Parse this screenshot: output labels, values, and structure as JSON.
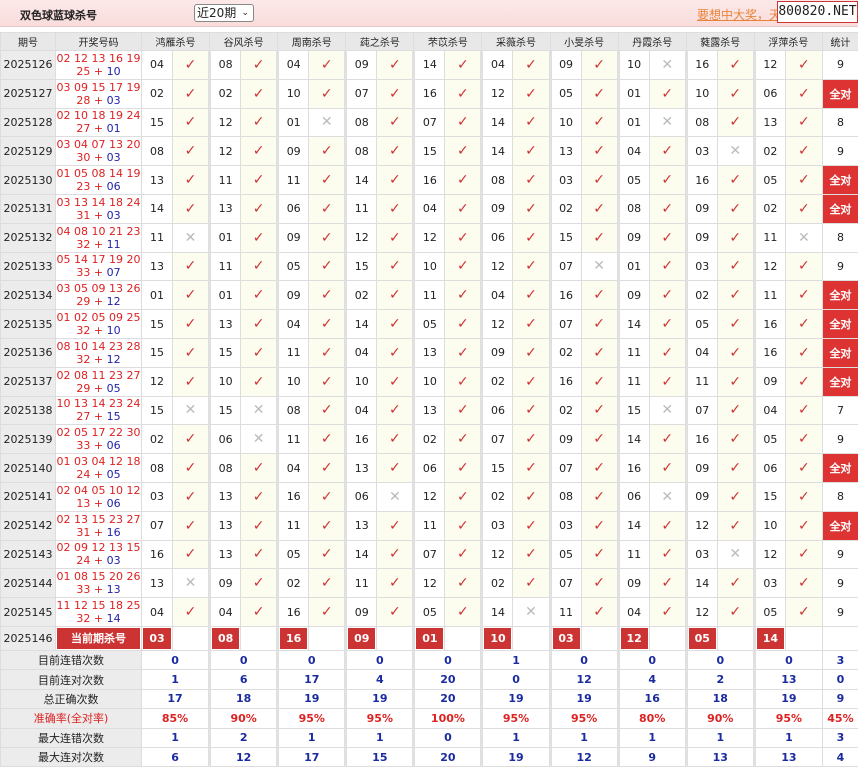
{
  "header": {
    "title": "双色球蓝球杀号",
    "period_select": "近20期",
    "promo": "要想中大奖，天",
    "site": "800820.NET"
  },
  "columns": {
    "period": "期号",
    "numbers": "开奖号码",
    "experts": [
      "鸿雁杀号",
      "谷风杀号",
      "周南杀号",
      "莼之杀号",
      "芣苡杀号",
      "采薇杀号",
      "小旻杀号",
      "丹霞杀号",
      "蕤露杀号",
      "浮萍杀号"
    ],
    "total": "统计"
  },
  "rows": [
    {
      "period": "2025126",
      "reds": "02 12 13 16 19",
      "red6": "25",
      "blue": "10",
      "kills": [
        "04",
        "08",
        "04",
        "09",
        "14",
        "04",
        "09",
        "10",
        "16",
        "12"
      ],
      "ok": [
        1,
        1,
        1,
        1,
        1,
        1,
        1,
        0,
        1,
        1
      ],
      "total": "9"
    },
    {
      "period": "2025127",
      "reds": "03 09 15 17 19",
      "red6": "28",
      "blue": "03",
      "kills": [
        "02",
        "02",
        "10",
        "07",
        "16",
        "12",
        "05",
        "01",
        "10",
        "06"
      ],
      "ok": [
        1,
        1,
        1,
        1,
        1,
        1,
        1,
        1,
        1,
        1
      ],
      "total": "全对"
    },
    {
      "period": "2025128",
      "reds": "02 10 18 19 24",
      "red6": "27",
      "blue": "01",
      "kills": [
        "15",
        "12",
        "01",
        "08",
        "07",
        "14",
        "10",
        "01",
        "08",
        "13"
      ],
      "ok": [
        1,
        1,
        0,
        1,
        1,
        1,
        1,
        0,
        1,
        1
      ],
      "total": "8"
    },
    {
      "period": "2025129",
      "reds": "03 04 07 13 20",
      "red6": "30",
      "blue": "03",
      "kills": [
        "08",
        "12",
        "09",
        "08",
        "15",
        "14",
        "13",
        "04",
        "03",
        "02"
      ],
      "ok": [
        1,
        1,
        1,
        1,
        1,
        1,
        1,
        1,
        0,
        1
      ],
      "total": "9"
    },
    {
      "period": "2025130",
      "reds": "01 05 08 14 19",
      "red6": "23",
      "blue": "06",
      "kills": [
        "13",
        "11",
        "11",
        "14",
        "16",
        "08",
        "03",
        "05",
        "16",
        "05"
      ],
      "ok": [
        1,
        1,
        1,
        1,
        1,
        1,
        1,
        1,
        1,
        1
      ],
      "total": "全对"
    },
    {
      "period": "2025131",
      "reds": "03 13 14 18 24",
      "red6": "31",
      "blue": "03",
      "kills": [
        "14",
        "13",
        "06",
        "11",
        "04",
        "09",
        "02",
        "08",
        "09",
        "02"
      ],
      "ok": [
        1,
        1,
        1,
        1,
        1,
        1,
        1,
        1,
        1,
        1
      ],
      "total": "全对"
    },
    {
      "period": "2025132",
      "reds": "04 08 10 21 23",
      "red6": "32",
      "blue": "11",
      "kills": [
        "11",
        "01",
        "09",
        "12",
        "12",
        "06",
        "15",
        "09",
        "09",
        "11"
      ],
      "ok": [
        0,
        1,
        1,
        1,
        1,
        1,
        1,
        1,
        1,
        0
      ],
      "total": "8"
    },
    {
      "period": "2025133",
      "reds": "05 14 17 19 20",
      "red6": "33",
      "blue": "07",
      "kills": [
        "13",
        "11",
        "05",
        "15",
        "10",
        "12",
        "07",
        "01",
        "03",
        "12"
      ],
      "ok": [
        1,
        1,
        1,
        1,
        1,
        1,
        0,
        1,
        1,
        1
      ],
      "total": "9"
    },
    {
      "period": "2025134",
      "reds": "03 05 09 13 26",
      "red6": "29",
      "blue": "12",
      "kills": [
        "01",
        "01",
        "09",
        "02",
        "11",
        "04",
        "16",
        "09",
        "02",
        "11"
      ],
      "ok": [
        1,
        1,
        1,
        1,
        1,
        1,
        1,
        1,
        1,
        1
      ],
      "total": "全对"
    },
    {
      "period": "2025135",
      "reds": "01 02 05 09 25",
      "red6": "32",
      "blue": "10",
      "kills": [
        "15",
        "13",
        "04",
        "14",
        "05",
        "12",
        "07",
        "14",
        "05",
        "16"
      ],
      "ok": [
        1,
        1,
        1,
        1,
        1,
        1,
        1,
        1,
        1,
        1
      ],
      "total": "全对"
    },
    {
      "period": "2025136",
      "reds": "08 10 14 23 28",
      "red6": "32",
      "blue": "12",
      "kills": [
        "15",
        "15",
        "11",
        "04",
        "13",
        "09",
        "02",
        "11",
        "04",
        "16"
      ],
      "ok": [
        1,
        1,
        1,
        1,
        1,
        1,
        1,
        1,
        1,
        1
      ],
      "total": "全对"
    },
    {
      "period": "2025137",
      "reds": "02 08 11 23 27",
      "red6": "29",
      "blue": "05",
      "kills": [
        "12",
        "10",
        "10",
        "10",
        "10",
        "02",
        "16",
        "11",
        "11",
        "09"
      ],
      "ok": [
        1,
        1,
        1,
        1,
        1,
        1,
        1,
        1,
        1,
        1
      ],
      "total": "全对"
    },
    {
      "period": "2025138",
      "reds": "10 13 14 23 24",
      "red6": "27",
      "blue": "15",
      "kills": [
        "15",
        "15",
        "08",
        "04",
        "13",
        "06",
        "02",
        "15",
        "07",
        "04"
      ],
      "ok": [
        0,
        0,
        1,
        1,
        1,
        1,
        1,
        0,
        1,
        1
      ],
      "total": "7"
    },
    {
      "period": "2025139",
      "reds": "02 05 17 22 30",
      "red6": "33",
      "blue": "06",
      "kills": [
        "02",
        "06",
        "11",
        "16",
        "02",
        "07",
        "09",
        "14",
        "16",
        "05"
      ],
      "ok": [
        1,
        0,
        1,
        1,
        1,
        1,
        1,
        1,
        1,
        1
      ],
      "total": "9"
    },
    {
      "period": "2025140",
      "reds": "01 03 04 12 18",
      "red6": "24",
      "blue": "05",
      "kills": [
        "08",
        "08",
        "04",
        "13",
        "06",
        "15",
        "07",
        "16",
        "09",
        "06"
      ],
      "ok": [
        1,
        1,
        1,
        1,
        1,
        1,
        1,
        1,
        1,
        1
      ],
      "total": "全对"
    },
    {
      "period": "2025141",
      "reds": "02 04 05 10 12",
      "red6": "13",
      "blue": "06",
      "kills": [
        "03",
        "13",
        "16",
        "06",
        "12",
        "02",
        "08",
        "06",
        "09",
        "15"
      ],
      "ok": [
        1,
        1,
        1,
        0,
        1,
        1,
        1,
        0,
        1,
        1
      ],
      "total": "8"
    },
    {
      "period": "2025142",
      "reds": "02 13 15 23 27",
      "red6": "31",
      "blue": "16",
      "kills": [
        "07",
        "13",
        "11",
        "13",
        "11",
        "03",
        "03",
        "14",
        "12",
        "10"
      ],
      "ok": [
        1,
        1,
        1,
        1,
        1,
        1,
        1,
        1,
        1,
        1
      ],
      "total": "全对"
    },
    {
      "period": "2025143",
      "reds": "02 09 12 13 15",
      "red6": "24",
      "blue": "03",
      "kills": [
        "16",
        "13",
        "05",
        "14",
        "07",
        "12",
        "05",
        "11",
        "03",
        "12"
      ],
      "ok": [
        1,
        1,
        1,
        1,
        1,
        1,
        1,
        1,
        0,
        1
      ],
      "total": "9"
    },
    {
      "period": "2025144",
      "reds": "01 08 15 20 26",
      "red6": "33",
      "blue": "13",
      "kills": [
        "13",
        "09",
        "02",
        "11",
        "12",
        "02",
        "07",
        "09",
        "14",
        "03"
      ],
      "ok": [
        0,
        1,
        1,
        1,
        1,
        1,
        1,
        1,
        1,
        1
      ],
      "total": "9"
    },
    {
      "period": "2025145",
      "reds": "11 12 15 18 25",
      "red6": "32",
      "blue": "14",
      "kills": [
        "04",
        "04",
        "16",
        "09",
        "05",
        "14",
        "11",
        "04",
        "12",
        "05"
      ],
      "ok": [
        1,
        1,
        1,
        1,
        1,
        0,
        1,
        1,
        1,
        1
      ],
      "total": "9"
    }
  ],
  "current": {
    "period": "2025146",
    "label": "当前期杀号",
    "kills": [
      "03",
      "08",
      "16",
      "09",
      "01",
      "10",
      "03",
      "12",
      "05",
      "14"
    ]
  },
  "stats": [
    {
      "label": "目前连错次数",
      "values": [
        "0",
        "0",
        "0",
        "0",
        "0",
        "1",
        "0",
        "0",
        "0",
        "0"
      ],
      "total": "3"
    },
    {
      "label": "目前连对次数",
      "values": [
        "1",
        "6",
        "17",
        "4",
        "20",
        "0",
        "12",
        "4",
        "2",
        "13"
      ],
      "total": "0"
    },
    {
      "label": "总正确次数",
      "values": [
        "17",
        "18",
        "19",
        "19",
        "20",
        "19",
        "19",
        "16",
        "18",
        "19"
      ],
      "total": "9"
    },
    {
      "label": "准确率(全对率)",
      "values": [
        "85%",
        "90%",
        "95%",
        "95%",
        "100%",
        "95%",
        "95%",
        "80%",
        "90%",
        "95%"
      ],
      "total": "45%"
    },
    {
      "label": "最大连错次数",
      "values": [
        "1",
        "2",
        "1",
        "1",
        "0",
        "1",
        "1",
        "1",
        "1",
        "1"
      ],
      "total": "3"
    },
    {
      "label": "最大连对次数",
      "values": [
        "6",
        "12",
        "17",
        "15",
        "20",
        "19",
        "12",
        "9",
        "13",
        "13"
      ],
      "total": "4"
    }
  ],
  "marks": {
    "ok": "✓",
    "miss": "✕"
  },
  "colors": {
    "accent": "#cc3333",
    "blue": "#1a2aa0",
    "red": "#dd2222"
  }
}
